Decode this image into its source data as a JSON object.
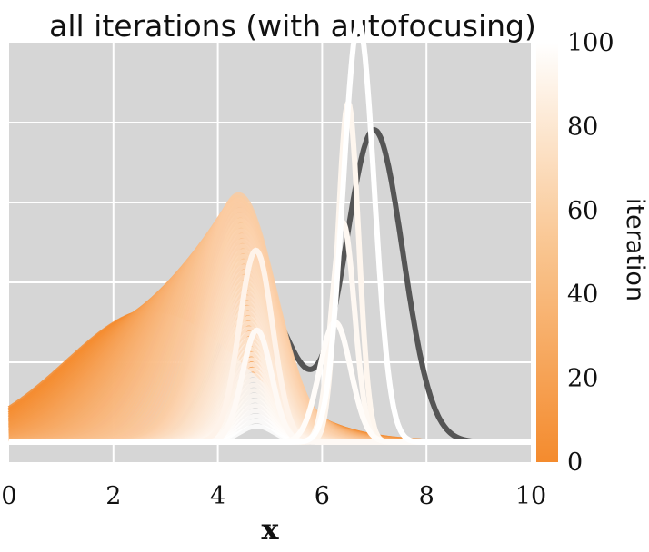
{
  "chart_data": {
    "type": "line",
    "title": "all iterations (with autofocusing)",
    "xlabel": "x",
    "ylabel": "",
    "xlim": [
      0,
      10
    ],
    "ylim": [
      -0.05,
      1.0
    ],
    "x_ticks": [
      "0",
      "2",
      "4",
      "6",
      "8",
      "10"
    ],
    "grid": true,
    "background": "#d6d6d6",
    "reference_series": {
      "color": "#555555",
      "components": [
        {
          "mu": 4.7,
          "sigma": 0.7,
          "amp": 0.38
        },
        {
          "mu": 7.0,
          "sigma": 0.55,
          "amp": 0.78
        }
      ]
    },
    "iteration_series": {
      "count": 101,
      "color_map": "white_to_orange",
      "color_high": "#ffffff",
      "color_low": "#f48b2e",
      "first": {
        "mu": 2.8,
        "sigma": 1.7,
        "amp": 0.33
      },
      "mid": {
        "mu": 4.4,
        "sigma": 0.7,
        "amp": 0.62
      },
      "spikes": [
        {
          "iteration": 90,
          "mu": 4.73,
          "sigma": 0.32,
          "amp": 0.48
        },
        {
          "iteration": 92,
          "mu": 6.5,
          "sigma": 0.2,
          "amp": 0.85
        },
        {
          "iteration": 94,
          "mu": 6.4,
          "sigma": 0.22,
          "amp": 0.55
        },
        {
          "iteration": 95,
          "mu": 4.75,
          "sigma": 0.28,
          "amp": 0.28
        },
        {
          "iteration": 97,
          "mu": 6.25,
          "sigma": 0.3,
          "amp": 0.3
        },
        {
          "iteration": 100,
          "mu": 6.7,
          "sigma": 0.3,
          "amp": 1.05
        }
      ]
    },
    "colorbar": {
      "label": "iteration",
      "min": 0,
      "max": 100,
      "ticks": [
        "0",
        "20",
        "40",
        "60",
        "80",
        "100"
      ]
    }
  }
}
